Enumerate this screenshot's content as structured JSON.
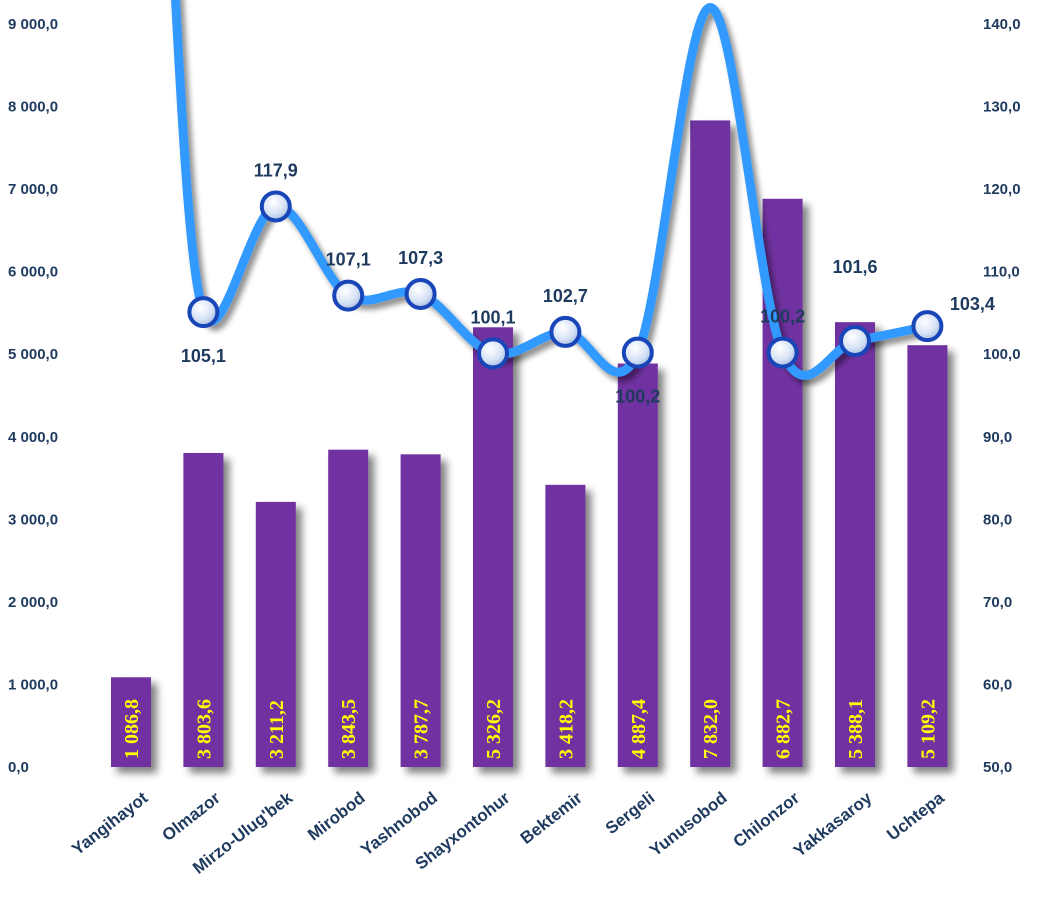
{
  "chart_data": {
    "type": "bar",
    "categories": [
      "Yangihayot",
      "Olmazor",
      "Mirzo-Ulug'bek",
      "Mirobod",
      "Yashnobod",
      "Shayxontohur",
      "Bektemir",
      "Sergeli",
      "Yunusobod",
      "Chilonzor",
      "Yakkasaroy",
      "Uchtepa"
    ],
    "series": [
      {
        "type": "bar",
        "axis": "left",
        "values": [
          1086.8,
          3803.6,
          3211.2,
          3843.5,
          3787.7,
          5326.2,
          3418.2,
          4887.4,
          7832.0,
          6882.7,
          5388.1,
          5109.2
        ],
        "labels": [
          "1 086,8",
          "3 803,6",
          "3 211,2",
          "3 843,5",
          "3 787,7",
          "5 326,2",
          "3 418,2",
          "4 887,4",
          "7 832,0",
          "6 882,7",
          "5 388,1",
          "5 109,2"
        ],
        "color": "#7030a0"
      },
      {
        "type": "line",
        "axis": "right",
        "values": [
          null,
          105.1,
          117.9,
          107.1,
          107.3,
          100.1,
          102.7,
          100.2,
          null,
          100.2,
          101.6,
          103.4
        ],
        "labels": [
          "",
          "105,1",
          "117,9",
          "107,1",
          "107,3",
          "100,1",
          "102,7",
          "100,2",
          "",
          "100,2",
          "101,6",
          "103,4"
        ],
        "color": "#3399ff"
      }
    ],
    "left_axis": {
      "ylim": [
        0,
        9000
      ],
      "ticks": [
        0,
        1000,
        2000,
        3000,
        4000,
        5000,
        6000,
        7000,
        8000,
        9000
      ],
      "tick_labels": [
        "0,0",
        "1 000,0",
        "2 000,0",
        "3 000,0",
        "4 000,0",
        "5 000,0",
        "6 000,0",
        "7 000,0",
        "8 000,0",
        "9 000,0"
      ]
    },
    "right_axis": {
      "ylim": [
        50,
        140
      ],
      "ticks": [
        50,
        60,
        70,
        80,
        90,
        100,
        110,
        120,
        130,
        140
      ],
      "tick_labels": [
        "50,0",
        "60,0",
        "70,0",
        "80,0",
        "90,0",
        "100,0",
        "110,0",
        "120,0",
        "130,0",
        "140,0"
      ]
    },
    "grid": false,
    "legend": "none"
  }
}
